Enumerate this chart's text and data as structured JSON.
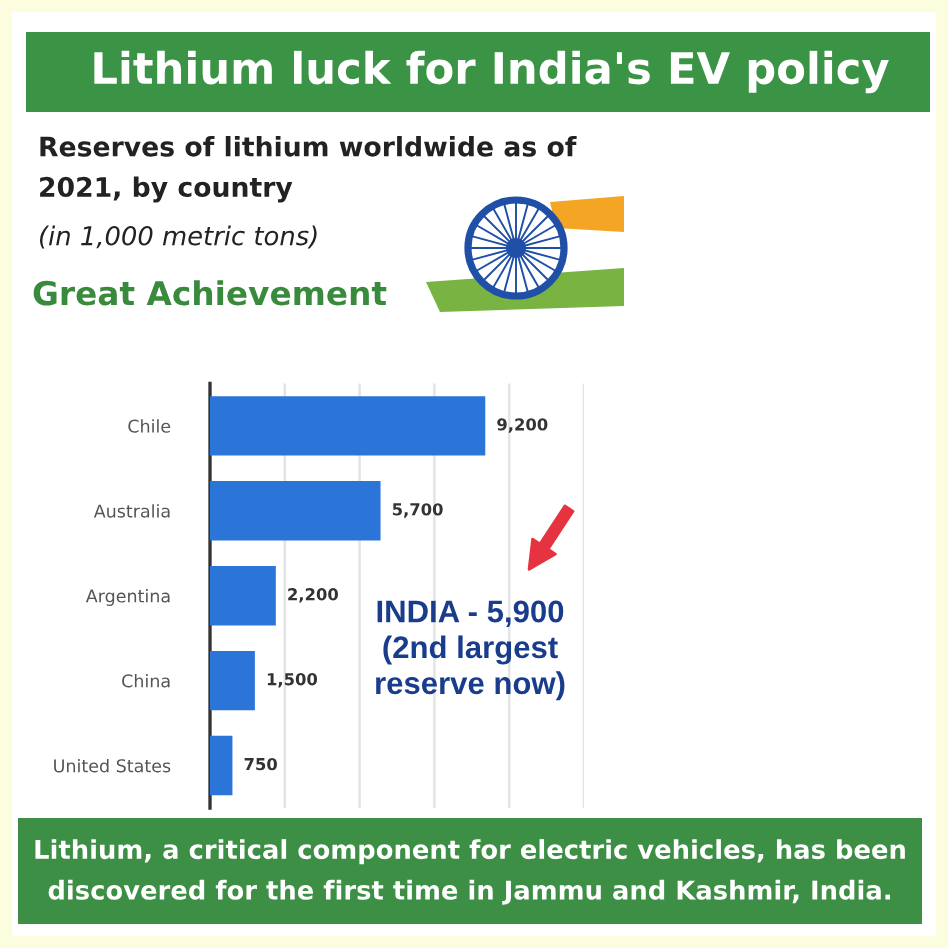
{
  "chart_data": {
    "type": "bar",
    "orientation": "horizontal",
    "title": "Lithium luck for India's EV policy",
    "subtitle": "Reserves of lithium worldwide as of\n2021, by country",
    "categories": [
      "Chile",
      "Australia",
      "Argentina",
      "China",
      "United States"
    ],
    "values": [
      9200,
      5700,
      2200,
      1500,
      750
    ],
    "color": "#2b74d8",
    "value_labels": [
      "9,200",
      "5,700",
      "2,200",
      "1,500",
      "750"
    ],
    "xlim": [
      0,
      12500
    ],
    "xticks": [
      {
        "value": 2500,
        "label": null
      },
      {
        "value": 5000,
        "label": null
      },
      {
        "value": 7500,
        "label": null
      },
      {
        "value": 10000,
        "label": null
      },
      {
        "value": 12500,
        "label": null
      }
    ],
    "grid": "x",
    "tick_labels": "y",
    "annotations": [
      "(in 1,000 metric tons)",
      "Great Achievement",
      "INDIA - 5,900\n(2nd largest\nreserve now)",
      "Lithium, a critical component for electric vehicles, has been\ndiscovered for the first time in Jammu and Kashmir, India."
    ]
  }
}
